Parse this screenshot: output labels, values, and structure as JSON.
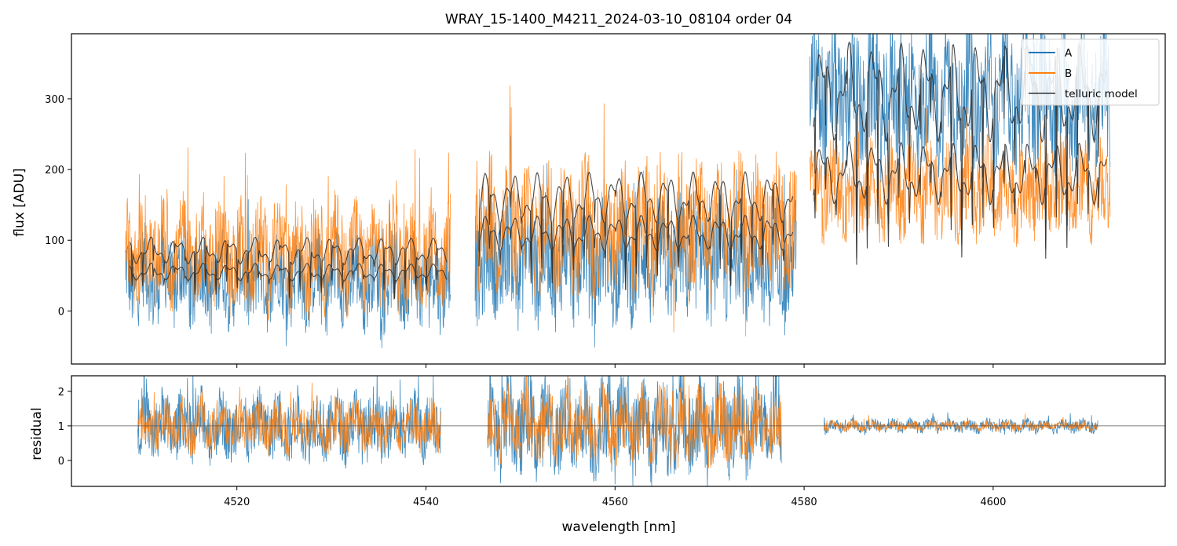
{
  "chart_data": {
    "type": "line",
    "title": "WRAY_15-1400_M4211_2024-03-10_08104  order 04",
    "xlabel": "wavelength [nm]",
    "x_range": [
      4502.5,
      4618.2
    ],
    "x_ticks": [
      4520,
      4540,
      4560,
      4580,
      4600
    ],
    "x_tick_labels": [
      "4520",
      "4540",
      "4560",
      "4580",
      "4600"
    ],
    "colors": {
      "A": "#1f77b4",
      "B": "#ff7f0e",
      "model": "#333333",
      "residual_ref": "#555555"
    },
    "segments": [
      {
        "x0": 4508.2,
        "x1": 4542.6
      },
      {
        "x0": 4545.2,
        "x1": 4579.2
      },
      {
        "x0": 4580.6,
        "x1": 4612.4
      }
    ],
    "panels": [
      {
        "id": "flux",
        "ylabel": "flux [ADU]",
        "ylim": [
          -75,
          392
        ],
        "y_ticks": [
          0,
          100,
          200,
          300
        ],
        "y_tick_labels": [
          "0",
          "100",
          "200",
          "300"
        ],
        "legend_position": "top-right",
        "series": [
          {
            "name": "A",
            "kind": "noisy",
            "baseline": [
              45,
              70,
              300
            ],
            "amplitude": [
              60,
              75,
              90
            ]
          },
          {
            "name": "B",
            "kind": "noisy",
            "baseline": [
              80,
              120,
              170
            ],
            "amplitude": [
              70,
              85,
              60
            ]
          },
          {
            "name": "telluric model",
            "kind": "model",
            "levels_upper": [
              85,
              160,
              310
            ],
            "levels_lower": [
              55,
              110,
              195
            ]
          }
        ],
        "legend": [
          "A",
          "B",
          "telluric model"
        ]
      },
      {
        "id": "residual",
        "ylabel": "residual",
        "ylim": [
          -0.75,
          2.45
        ],
        "y_ticks": [
          0,
          1,
          2
        ],
        "y_tick_labels": [
          "0",
          "1",
          "2"
        ],
        "reference_line": 1,
        "residual_segments": [
          {
            "x0": 4509.5,
            "x1": 4541.6,
            "spread": 0.9
          },
          {
            "x0": 4546.5,
            "x1": 4577.6,
            "spread": 1.3
          },
          {
            "x0": 4582.1,
            "x1": 4611.1,
            "spread": 0.18
          }
        ]
      }
    ]
  }
}
